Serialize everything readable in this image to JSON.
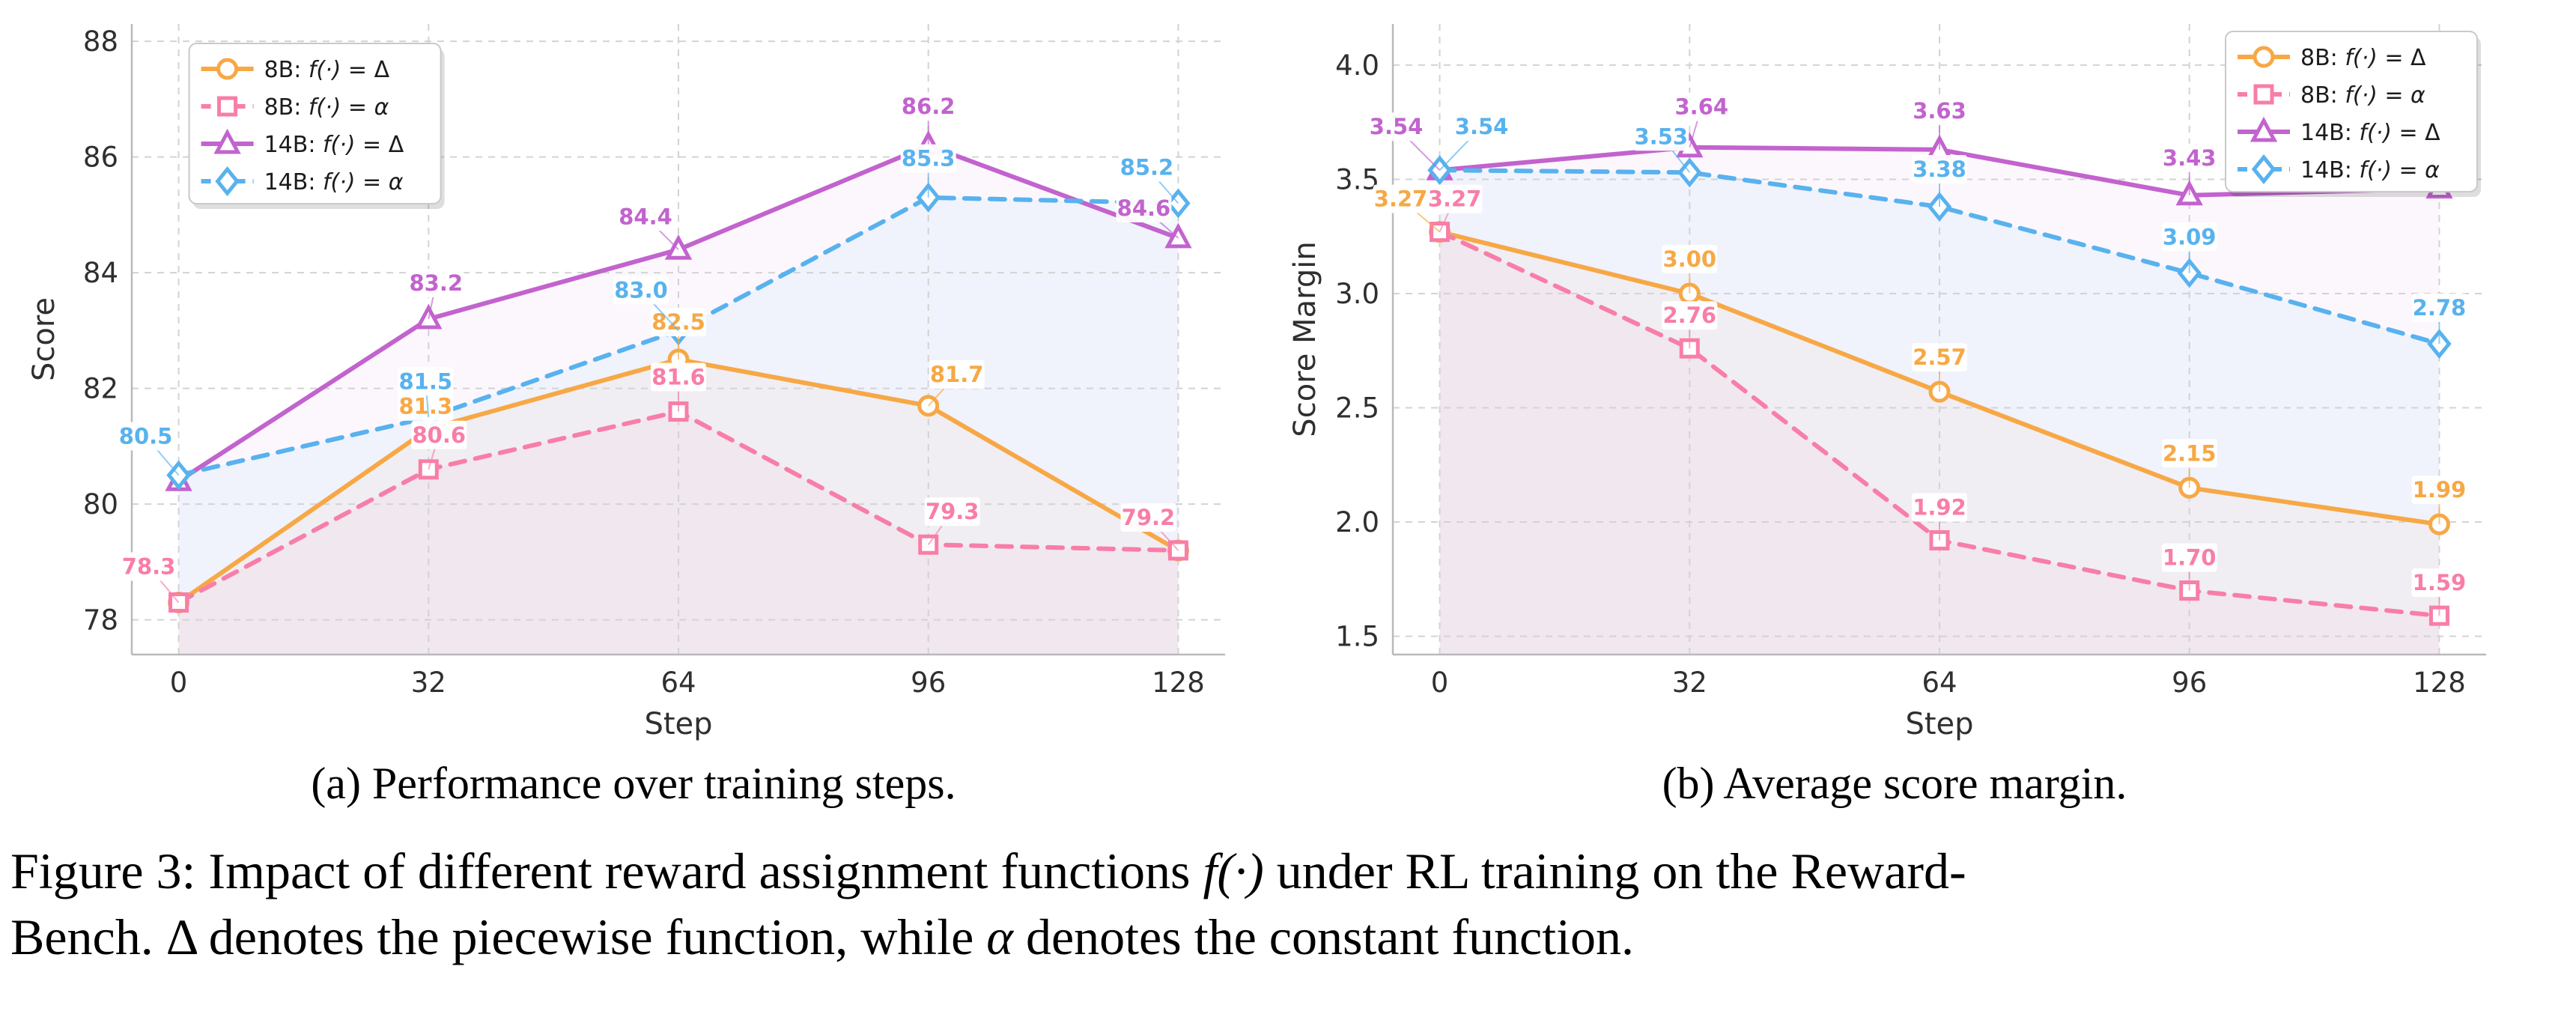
{
  "figure": {
    "panel_a_caption": "(a) Performance over training steps.",
    "panel_b_caption": "(b) Average score margin.",
    "caption": {
      "line1_pre": "Figure 3: Impact of different reward assignment functions ",
      "line1_math": "f(·)",
      "line1_post": " under RL training on the Reward-",
      "line2_pre": "Bench. ",
      "line2_delta": "Δ",
      "line2_mid": " denotes the piecewise function, while ",
      "line2_alpha": "α",
      "line2_post": " denotes the constant function."
    }
  },
  "colors": {
    "orange": "#F7A845",
    "pink": "#F87EA7",
    "purple": "#C263CE",
    "blue": "#58B2EE",
    "grid": "#d3d3d3",
    "spine": "#b9b9b9",
    "tick_text": "#2f2f2f",
    "legend_text": "#1c1c1c"
  },
  "chart_data": [
    {
      "type": "line",
      "title": "",
      "xlabel": "Step",
      "ylabel": "Score",
      "x": [
        0,
        32,
        64,
        96,
        128
      ],
      "xticks": [
        0,
        32,
        64,
        96,
        128
      ],
      "yticks": [
        78,
        80,
        82,
        84,
        86,
        88
      ],
      "xlim": [
        -6,
        134
      ],
      "ylim": [
        77.4,
        88.3
      ],
      "grid": true,
      "legend_position": "top-left",
      "ytick_decimals": 0,
      "label_decimals": 1,
      "series": [
        {
          "key": "8b-delta",
          "name": "8B: f(·) = Δ",
          "color": "#F7A845",
          "marker": "circle",
          "dashed": false,
          "fill_opacity": 0.05,
          "values": [
            78.3,
            81.3,
            82.5,
            81.7,
            79.2
          ],
          "label_offsets": [
            null,
            [
              -4,
              -30
            ],
            [
              0,
              -50
            ],
            [
              38,
              -42
            ],
            null
          ]
        },
        {
          "key": "8b-alpha",
          "name": "8B: f(·) = α",
          "color": "#F87EA7",
          "marker": "square",
          "dashed": true,
          "fill_opacity": 0.06,
          "values": [
            78.3,
            80.6,
            81.6,
            79.3,
            79.2
          ],
          "label_offsets": [
            [
              -40,
              -48
            ],
            [
              14,
              -46
            ],
            [
              0,
              -46
            ],
            [
              32,
              -44
            ],
            [
              -40,
              -44
            ]
          ]
        },
        {
          "key": "14b-delta",
          "name": "14B: f(·) = Δ",
          "color": "#C263CE",
          "marker": "triangle",
          "dashed": false,
          "fill_opacity": 0.05,
          "values": [
            80.4,
            83.2,
            84.4,
            86.2,
            84.6
          ],
          "label_offsets": [
            null,
            [
              10,
              -48
            ],
            [
              -44,
              -44
            ],
            [
              0,
              -52
            ],
            [
              -46,
              -40
            ]
          ]
        },
        {
          "key": "14b-alpha",
          "name": "14B: f(·) = α",
          "color": "#58B2EE",
          "marker": "diamond",
          "dashed": true,
          "fill_opacity": 0.07,
          "values": [
            80.5,
            81.5,
            83.0,
            85.3,
            85.2
          ],
          "label_offsets": [
            [
              -44,
              -52
            ],
            [
              -4,
              -48
            ],
            [
              -50,
              -54
            ],
            [
              0,
              -52
            ],
            [
              -42,
              -48
            ]
          ]
        }
      ]
    },
    {
      "type": "line",
      "title": "",
      "xlabel": "Step",
      "ylabel": "Score Margin",
      "x": [
        0,
        32,
        64,
        96,
        128
      ],
      "xticks": [
        0,
        32,
        64,
        96,
        128
      ],
      "yticks": [
        1.5,
        2.0,
        2.5,
        3.0,
        3.5,
        4.0
      ],
      "xlim": [
        -6,
        134
      ],
      "ylim": [
        1.42,
        4.18
      ],
      "grid": true,
      "legend_position": "top-right",
      "ytick_decimals": 1,
      "label_decimals": 2,
      "series": [
        {
          "key": "8b-delta",
          "name": "8B: f(·) = Δ",
          "color": "#F7A845",
          "marker": "circle",
          "dashed": false,
          "fill_opacity": 0.05,
          "values": [
            3.27,
            3.0,
            2.57,
            2.15,
            1.99
          ],
          "label_offsets": [
            [
              -52,
              -44
            ],
            [
              0,
              -46
            ],
            [
              0,
              -46
            ],
            [
              0,
              -46
            ],
            [
              0,
              -46
            ]
          ]
        },
        {
          "key": "8b-alpha",
          "name": "8B: f(·) = α",
          "color": "#F87EA7",
          "marker": "square",
          "dashed": true,
          "fill_opacity": 0.06,
          "values": [
            3.27,
            2.76,
            1.92,
            1.7,
            1.59
          ],
          "label_offsets": [
            [
              20,
              -44
            ],
            [
              0,
              -44
            ],
            [
              0,
              -44
            ],
            [
              0,
              -44
            ],
            [
              0,
              -44
            ]
          ]
        },
        {
          "key": "14b-delta",
          "name": "14B: f(·) = Δ",
          "color": "#C263CE",
          "marker": "triangle",
          "dashed": false,
          "fill_opacity": 0.05,
          "values": [
            3.54,
            3.64,
            3.63,
            3.43,
            3.46
          ],
          "label_offsets": [
            [
              -58,
              -58
            ],
            [
              16,
              -54
            ],
            [
              0,
              -52
            ],
            [
              0,
              -50
            ],
            [
              0,
              -50
            ]
          ]
        },
        {
          "key": "14b-alpha",
          "name": "14B: f(·) = α",
          "color": "#58B2EE",
          "marker": "diamond",
          "dashed": true,
          "fill_opacity": 0.07,
          "values": [
            3.54,
            3.53,
            3.38,
            3.09,
            2.78
          ],
          "label_offsets": [
            [
              56,
              -58
            ],
            [
              -38,
              -48
            ],
            [
              0,
              -50
            ],
            [
              0,
              -48
            ],
            [
              0,
              -48
            ]
          ]
        }
      ]
    }
  ]
}
